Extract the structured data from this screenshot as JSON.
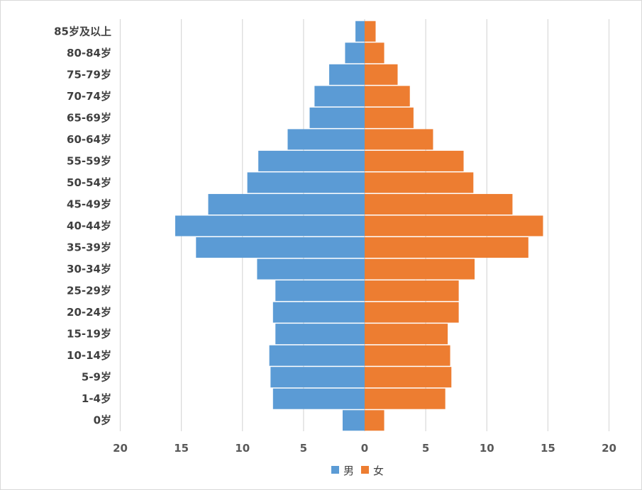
{
  "chart_data": {
    "type": "bar",
    "orientation": "horizontal",
    "layout": "population-pyramid",
    "categories": [
      "85岁及以上",
      "80-84岁",
      "75-79岁",
      "70-74岁",
      "65-69岁",
      "60-64岁",
      "55-59岁",
      "50-54岁",
      "45-49岁",
      "40-44岁",
      "35-39岁",
      "30-34岁",
      "25-29岁",
      "20-24岁",
      "15-19岁",
      "10-14岁",
      "5-9岁",
      "1-4岁",
      "0岁"
    ],
    "series": [
      {
        "name": "男",
        "color": "#5b9bd5",
        "side": "left",
        "values": [
          0.75,
          1.6,
          2.9,
          4.1,
          4.5,
          6.3,
          8.7,
          9.6,
          12.8,
          15.5,
          13.8,
          8.8,
          7.3,
          7.5,
          7.3,
          7.8,
          7.7,
          7.5,
          1.8
        ]
      },
      {
        "name": "女",
        "color": "#ed7d31",
        "side": "right",
        "values": [
          0.9,
          1.6,
          2.7,
          3.7,
          4.0,
          5.6,
          8.1,
          8.9,
          12.1,
          14.6,
          13.4,
          9.0,
          7.7,
          7.7,
          6.8,
          7.0,
          7.1,
          6.6,
          1.6
        ]
      }
    ],
    "x_ticks": [
      "20",
      "15",
      "10",
      "5",
      "0",
      "5",
      "10",
      "15",
      "20"
    ],
    "xlim": [
      -20,
      20
    ],
    "grid": "vertical",
    "legend": "bottom-center"
  }
}
